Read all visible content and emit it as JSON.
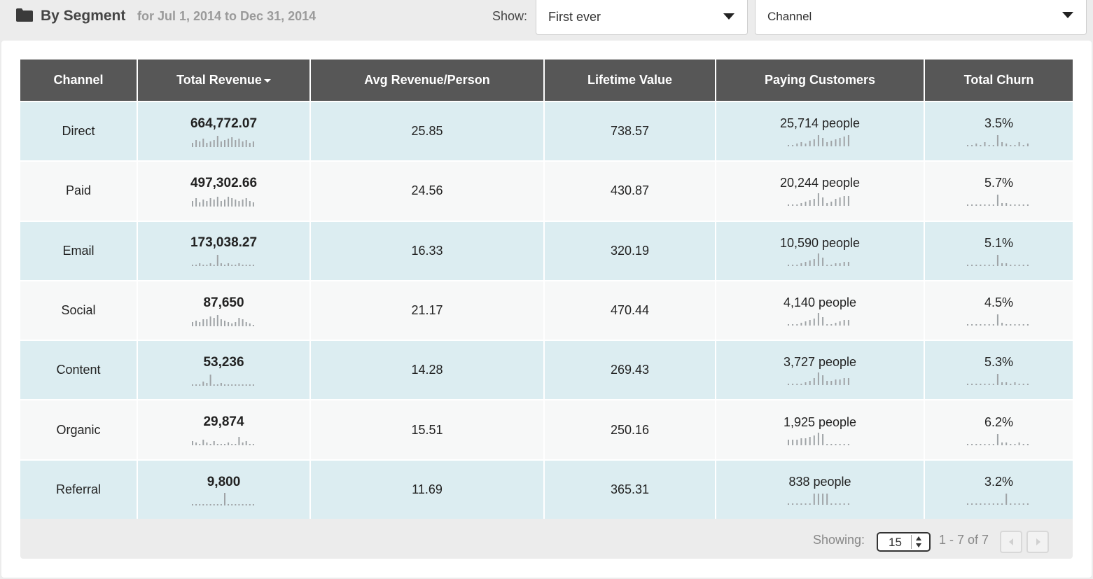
{
  "header": {
    "icon": "folder-icon",
    "title": "By Segment",
    "date_range": "for Jul 1, 2014 to Dec 31, 2014",
    "show_label": "Show:",
    "show_select": "First ever",
    "segment_select": "Channel"
  },
  "table": {
    "columns": [
      "Channel",
      "Total Revenue",
      "Avg Revenue/Person",
      "Lifetime Value",
      "Paying Customers",
      "Total Churn"
    ],
    "sorted_column": "Total Revenue",
    "rows": [
      {
        "channel": "Direct",
        "revenue": "664,772.07",
        "avg": "25.85",
        "ltv": "738.57",
        "customers": "25,714 people",
        "churn": "3.5%"
      },
      {
        "channel": "Paid",
        "revenue": "497,302.66",
        "avg": "24.56",
        "ltv": "430.87",
        "customers": "20,244 people",
        "churn": "5.7%"
      },
      {
        "channel": "Email",
        "revenue": "173,038.27",
        "avg": "16.33",
        "ltv": "320.19",
        "customers": "10,590 people",
        "churn": "5.1%"
      },
      {
        "channel": "Social",
        "revenue": "87,650",
        "avg": "21.17",
        "ltv": "470.44",
        "customers": "4,140 people",
        "churn": "4.5%"
      },
      {
        "channel": "Content",
        "revenue": "53,236",
        "avg": "14.28",
        "ltv": "269.43",
        "customers": "3,727 people",
        "churn": "5.3%"
      },
      {
        "channel": "Organic",
        "revenue": "29,874",
        "avg": "15.51",
        "ltv": "250.16",
        "customers": "1,925 people",
        "churn": "6.2%"
      },
      {
        "channel": "Referral",
        "revenue": "9,800",
        "avg": "11.69",
        "ltv": "365.31",
        "customers": "838 people",
        "churn": "3.2%"
      }
    ]
  },
  "footer": {
    "showing_label": "Showing:",
    "page_size": "15",
    "range": "1 - 7 of 7"
  },
  "colors": {
    "header_bg": "#575757",
    "row_odd": "#dcedf1",
    "row_even": "#f7f8f8",
    "spark": "#9fa3a6"
  }
}
